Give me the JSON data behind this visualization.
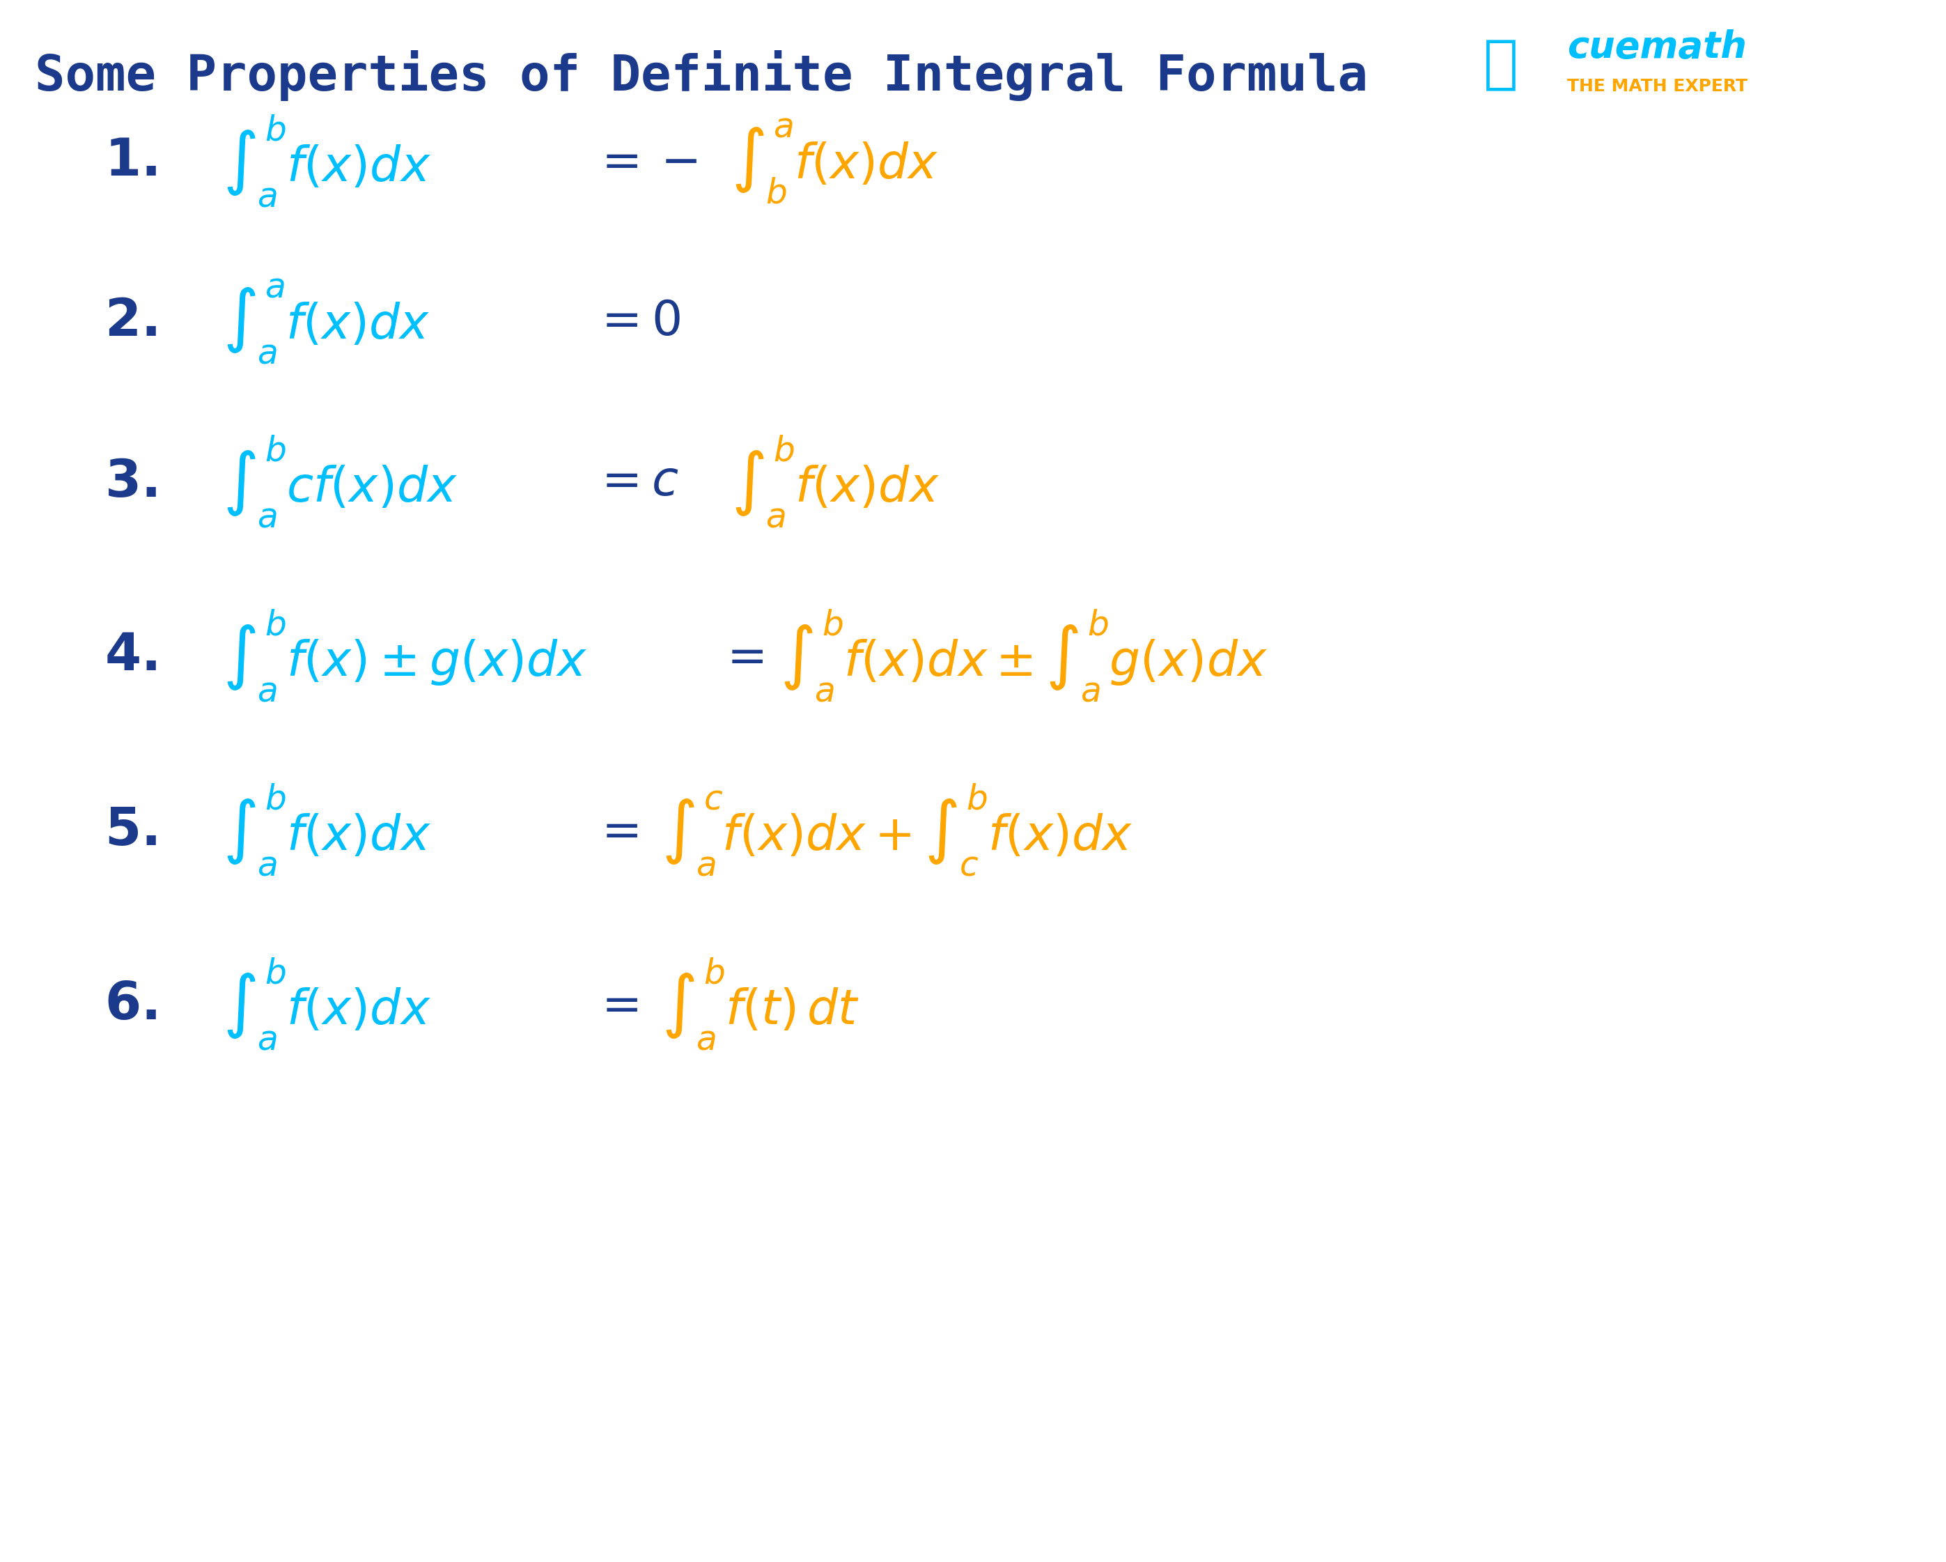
{
  "title": "Some Properties of Definite Integral Formula",
  "title_color": "#2244AA",
  "title_fontsize": 52,
  "background_color": "#FFFFFF",
  "cyan": "#00BFFF",
  "orange": "#FFA500",
  "dark_blue": "#1B3A8C",
  "formula_fontsize": 48,
  "number_fontsize": 52,
  "rules": [
    {
      "number": "1.",
      "lhs": "$\\int_a^b f(x)dx$",
      "eq": "$= -$",
      "rhs": "$\\int_b^a f(x)dx$"
    },
    {
      "number": "2.",
      "lhs": "$\\int_a^a f(x)dx$",
      "eq": "$= 0$",
      "rhs": ""
    },
    {
      "number": "3.",
      "lhs": "$\\int_a^b cf(x)dx$",
      "eq": "$= c$",
      "rhs": "$\\int_a^b f(x)dx$"
    },
    {
      "number": "4.",
      "lhs": "$\\int_a^b f(x) \\pm g(x)dx$",
      "eq": "$=$",
      "rhs": "$\\int_a^b f(x)dx \\pm \\int_a^b g(x)dx$"
    },
    {
      "number": "5.",
      "lhs": "$\\int_a^b f(x)dx$",
      "eq": "$=$",
      "rhs": "$\\int_a^c f(x)dx + \\int_c^b f(x)dx$"
    },
    {
      "number": "6.",
      "lhs": "$\\int_a^b f(x)dx$",
      "eq": "$=$",
      "rhs": "$\\int_a^b f(t)\\, dt$"
    }
  ]
}
